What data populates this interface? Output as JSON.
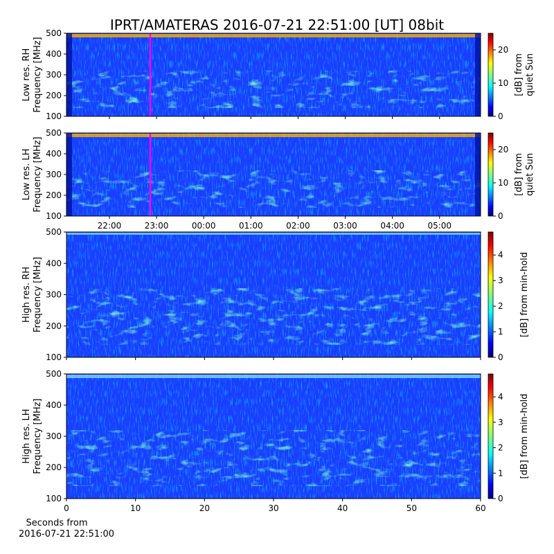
{
  "chart_data": [
    {
      "type": "heatmap",
      "title": "IPRT/AMATERAS 2016-07-21 22:51:00 [UT]   08bit",
      "ylabel": [
        "Low res. RH",
        "Frequency [MHz]"
      ],
      "ylim": [
        100,
        500
      ],
      "yticks": [
        100,
        200,
        300,
        400,
        500
      ],
      "xlim": [
        21.09,
        29.87
      ],
      "clabel": [
        "[dB] from",
        "quiet Sun"
      ],
      "clim": [
        0,
        25
      ],
      "cticks": [
        0,
        10,
        20
      ],
      "colormap": "jet"
    },
    {
      "type": "heatmap",
      "ylabel": [
        "Low res. LH",
        "Frequency [MHz]"
      ],
      "ylim": [
        100,
        500
      ],
      "yticks": [
        100,
        200,
        300,
        400,
        500
      ],
      "xlim": [
        21.09,
        29.87
      ],
      "xticks": [
        {
          "value": 22,
          "label": "22:00"
        },
        {
          "value": 23,
          "label": "23:00"
        },
        {
          "value": 24,
          "label": "00:00"
        },
        {
          "value": 25,
          "label": "01:00"
        },
        {
          "value": 26,
          "label": "02:00"
        },
        {
          "value": 27,
          "label": "03:00"
        },
        {
          "value": 28,
          "label": "04:00"
        },
        {
          "value": 29,
          "label": "05:00"
        }
      ],
      "clabel": [
        "[dB] from",
        "quiet Sun"
      ],
      "clim": [
        0,
        25
      ],
      "cticks": [
        0,
        10,
        20
      ],
      "colormap": "jet"
    },
    {
      "type": "heatmap",
      "ylabel": [
        "High res. RH",
        "Frequency [MHz]"
      ],
      "ylim": [
        100,
        500
      ],
      "yticks": [
        100,
        200,
        300,
        400,
        500
      ],
      "xlim": [
        0,
        60
      ],
      "clabel": [
        "[dB] from min-hold"
      ],
      "clim": [
        0,
        4.9
      ],
      "cticks": [
        0,
        1,
        2,
        3,
        4
      ],
      "colormap": "jet"
    },
    {
      "type": "heatmap",
      "ylabel": [
        "High res. LH",
        "Frequency [MHz]"
      ],
      "ylim": [
        100,
        500
      ],
      "yticks": [
        100,
        200,
        300,
        400,
        500
      ],
      "xlim": [
        0,
        60
      ],
      "xticks": [
        0,
        10,
        20,
        30,
        40,
        50,
        60
      ],
      "xlabel": [
        "Seconds from",
        "2016-07-21 22:51:00"
      ],
      "clabel": [
        "[dB] from min-hold"
      ],
      "clim": [
        0,
        4.9
      ],
      "cticks": [
        0,
        1,
        2,
        3,
        4
      ],
      "colormap": "jet"
    }
  ]
}
